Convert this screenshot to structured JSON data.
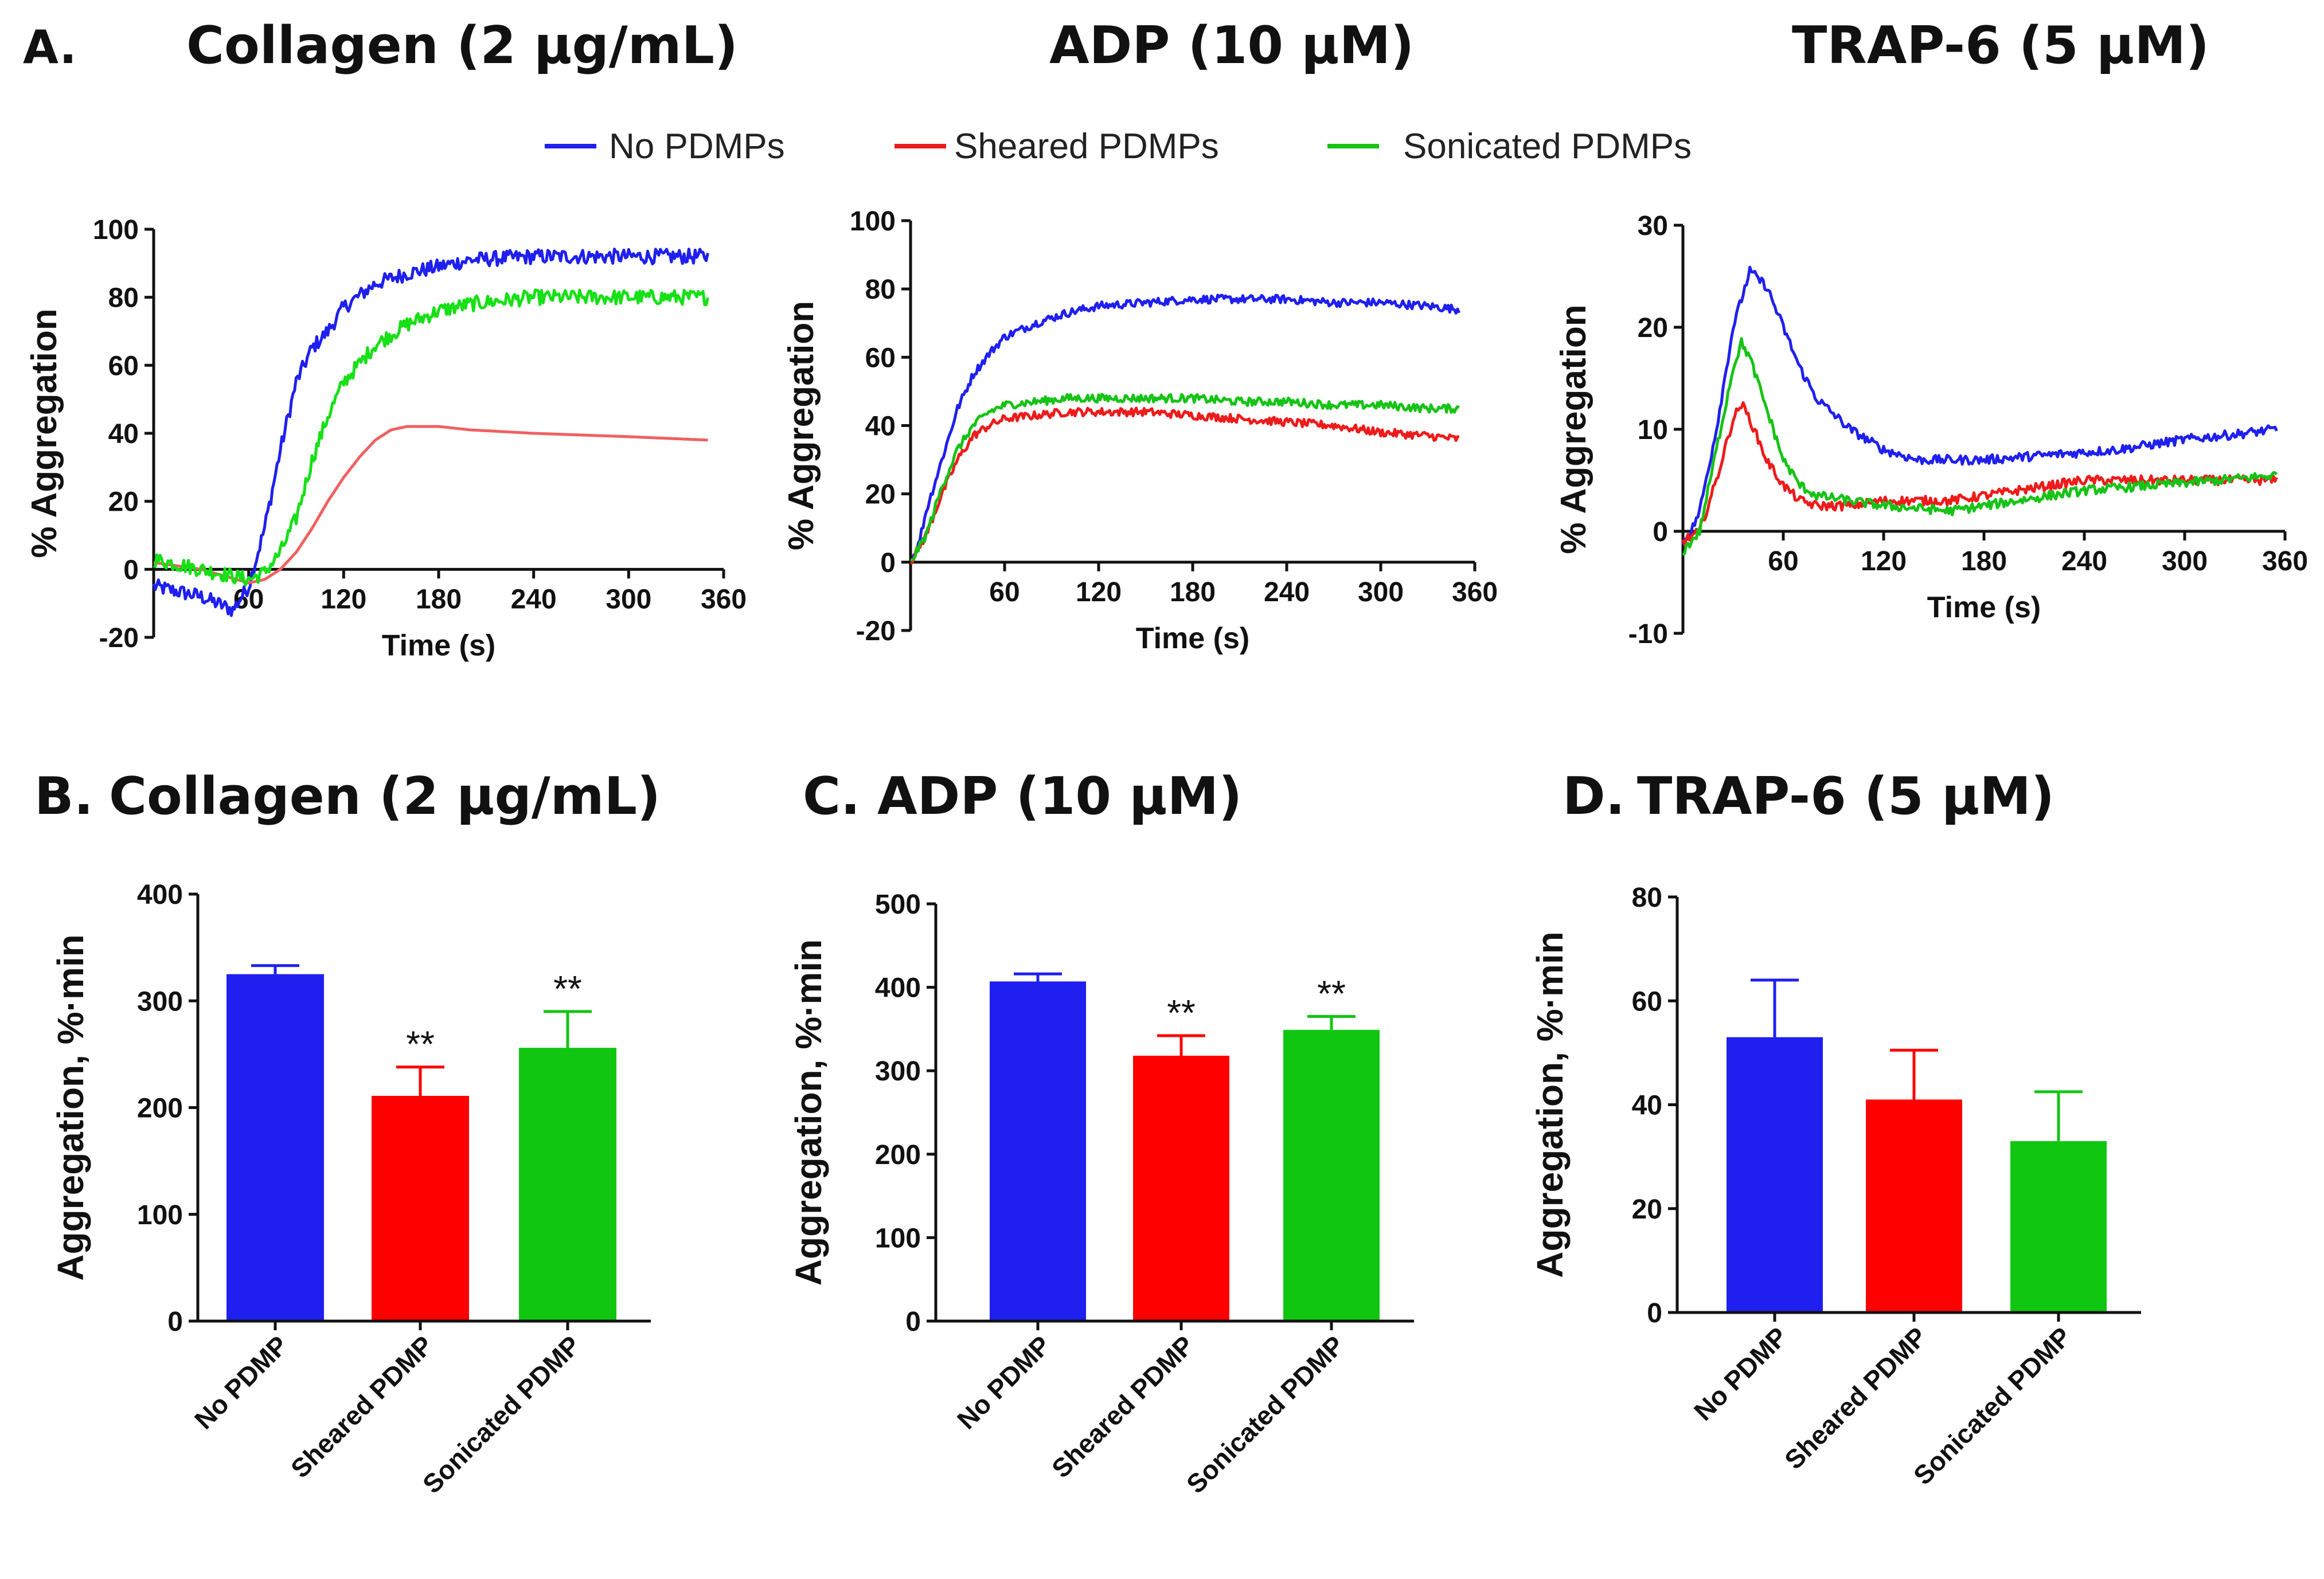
{
  "figure": {
    "panel_a_label": "A.",
    "legend": [
      {
        "label": "No PDMPs",
        "color": "#1f1ff0"
      },
      {
        "label": "Sheared PDMPs",
        "color": "#ee1b1b"
      },
      {
        "label": "Sonicated PDMPs",
        "color": "#16c316"
      }
    ]
  },
  "chart_data": [
    {
      "id": "a1",
      "type": "line",
      "title": "Collagen (2 µg/mL)",
      "xlabel": "Time (s)",
      "ylabel": "% Aggregation",
      "xlim": [
        0,
        360
      ],
      "ylim": [
        -20,
        100
      ],
      "xticks": [
        60,
        120,
        180,
        240,
        300,
        360
      ],
      "yticks": [
        -20,
        0,
        20,
        40,
        60,
        80,
        100
      ],
      "noise": 2.2,
      "series": [
        {
          "name": "No PDMPs",
          "color": "#1f1ff0",
          "noisy": true,
          "x": [
            0,
            10,
            30,
            40,
            50,
            60,
            70,
            80,
            90,
            100,
            110,
            120,
            140,
            160,
            180,
            200,
            240,
            280,
            320,
            350
          ],
          "y": [
            -5,
            -6,
            -8,
            -10,
            -12,
            -5,
            12,
            35,
            55,
            65,
            70,
            77,
            84,
            87,
            89,
            91,
            92,
            92,
            92,
            92
          ]
        },
        {
          "name": "Sheared PDMPs",
          "color": "#f06060",
          "noisy": false,
          "x": [
            0,
            30,
            60,
            70,
            80,
            90,
            100,
            110,
            120,
            130,
            140,
            150,
            160,
            180,
            200,
            240,
            300,
            350
          ],
          "y": [
            2,
            0,
            -4,
            -3,
            0,
            5,
            12,
            20,
            27,
            33,
            38,
            41,
            42,
            42,
            41,
            40,
            39,
            38
          ]
        },
        {
          "name": "Sonicated PDMPs",
          "color": "#16e016",
          "noisy": true,
          "x": [
            0,
            30,
            60,
            70,
            80,
            90,
            100,
            110,
            120,
            140,
            160,
            180,
            200,
            220,
            240,
            280,
            320,
            350
          ],
          "y": [
            3,
            0,
            -3,
            -1,
            5,
            15,
            32,
            45,
            55,
            66,
            72,
            76,
            78,
            79,
            80,
            80,
            80,
            80
          ]
        }
      ]
    },
    {
      "id": "a2",
      "type": "line",
      "title": "ADP (10 µM)",
      "xlabel": "Time (s)",
      "ylabel": "% Aggregation",
      "xlim": [
        0,
        360
      ],
      "ylim": [
        -20,
        100
      ],
      "xticks": [
        60,
        120,
        180,
        240,
        300,
        360
      ],
      "yticks": [
        -20,
        0,
        20,
        40,
        60,
        80,
        100
      ],
      "noise": 1.2,
      "series": [
        {
          "name": "No PDMPs",
          "color": "#1f1ff0",
          "noisy": true,
          "x": [
            0,
            5,
            10,
            20,
            30,
            40,
            50,
            60,
            80,
            100,
            120,
            150,
            180,
            210,
            240,
            270,
            300,
            330,
            350
          ],
          "y": [
            0,
            5,
            15,
            30,
            45,
            55,
            61,
            66,
            70,
            73,
            75,
            76,
            77,
            77,
            77,
            76,
            76,
            75,
            74
          ]
        },
        {
          "name": "Sheared PDMPs",
          "color": "#ee1b1b",
          "noisy": true,
          "x": [
            0,
            10,
            20,
            30,
            40,
            50,
            60,
            80,
            100,
            120,
            150,
            180,
            210,
            240,
            270,
            300,
            330,
            350
          ],
          "y": [
            0,
            8,
            20,
            30,
            37,
            40,
            42,
            43,
            44,
            44,
            44,
            43,
            42,
            41,
            40,
            38,
            37,
            36
          ]
        },
        {
          "name": "Sonicated PDMPs",
          "color": "#16c316",
          "noisy": true,
          "x": [
            0,
            10,
            20,
            30,
            40,
            50,
            60,
            80,
            100,
            120,
            150,
            180,
            210,
            240,
            270,
            300,
            330,
            350
          ],
          "y": [
            0,
            8,
            22,
            33,
            40,
            44,
            46,
            47,
            48,
            48,
            48,
            48,
            47,
            47,
            46,
            46,
            45,
            45
          ]
        }
      ]
    },
    {
      "id": "a3",
      "type": "line",
      "title": "TRAP-6 (5 µM)",
      "xlabel": "Time (s)",
      "ylabel": "% Aggregation",
      "xlim": [
        0,
        360
      ],
      "ylim": [
        -10,
        30
      ],
      "xticks": [
        60,
        120,
        180,
        240,
        300,
        360
      ],
      "yticks": [
        -10,
        0,
        10,
        20,
        30
      ],
      "noise": 0.45,
      "series": [
        {
          "name": "No PDMPs",
          "color": "#1f1ff0",
          "noisy": true,
          "x": [
            0,
            5,
            10,
            20,
            30,
            40,
            50,
            60,
            70,
            80,
            100,
            120,
            140,
            160,
            180,
            220,
            260,
            300,
            330,
            355
          ],
          "y": [
            -1,
            0,
            2,
            10,
            20,
            25.5,
            24,
            20,
            16,
            13,
            10,
            8,
            7,
            7,
            7,
            7.5,
            8,
            9,
            9.5,
            10
          ]
        },
        {
          "name": "Sheared PDMPs",
          "color": "#ee1b1b",
          "noisy": true,
          "x": [
            0,
            10,
            20,
            30,
            35,
            40,
            50,
            60,
            70,
            80,
            100,
            120,
            160,
            200,
            240,
            280,
            320,
            355
          ],
          "y": [
            -1,
            0,
            5,
            11,
            12.5,
            11,
            7,
            4.5,
            3,
            2.5,
            2.5,
            3,
            3,
            4,
            5,
            5,
            5,
            5
          ]
        },
        {
          "name": "Sonicated PDMPs",
          "color": "#16c316",
          "noisy": true,
          "x": [
            0,
            10,
            20,
            30,
            35,
            40,
            50,
            60,
            70,
            80,
            100,
            120,
            160,
            200,
            240,
            280,
            320,
            355
          ],
          "y": [
            -2,
            0,
            8,
            16,
            18.5,
            17,
            12,
            7,
            4.5,
            3.5,
            3,
            2.5,
            2,
            3,
            4,
            4.5,
            5,
            5.5
          ]
        }
      ]
    },
    {
      "id": "b",
      "type": "bar",
      "panel_label": "B.",
      "title": "Collagen (2 µg/mL)",
      "ylabel": "Aggregation, %·min",
      "ylim": [
        0,
        400
      ],
      "yticks": [
        0,
        100,
        200,
        300,
        400
      ],
      "categories": [
        "No PDMP",
        "Sheared PDMP",
        "Sonicated PDMP"
      ],
      "colors": [
        "#1f1ff0",
        "#ff0000",
        "#11c611"
      ],
      "values": [
        325,
        211,
        256
      ],
      "errors": [
        8,
        27,
        34
      ],
      "annotations": [
        "",
        "**",
        "**"
      ]
    },
    {
      "id": "c",
      "type": "bar",
      "panel_label": "C.",
      "title": "ADP (10 µM)",
      "ylabel": "Aggregation, %·min",
      "ylim": [
        0,
        500
      ],
      "yticks": [
        0,
        100,
        200,
        300,
        400,
        500
      ],
      "categories": [
        "No PDMP",
        "Sheared PDMP",
        "Sonicated PDMP"
      ],
      "colors": [
        "#1f1ff0",
        "#ff0000",
        "#11c611"
      ],
      "values": [
        407,
        318,
        349
      ],
      "errors": [
        9,
        24,
        16
      ],
      "annotations": [
        "",
        "**",
        "**"
      ]
    },
    {
      "id": "d",
      "type": "bar",
      "panel_label": "D.",
      "title": "TRAP-6 (5 µM)",
      "ylabel": "Aggregation, %·min",
      "ylim": [
        0,
        80
      ],
      "yticks": [
        0,
        20,
        40,
        60,
        80
      ],
      "categories": [
        "No PDMP",
        "Sheared PDMP",
        "Sonicated PDMP"
      ],
      "colors": [
        "#1f1ff0",
        "#ff0000",
        "#11c611"
      ],
      "values": [
        53,
        41,
        33
      ],
      "errors": [
        11,
        9.5,
        9.5
      ],
      "annotations": [
        "",
        "",
        ""
      ]
    }
  ]
}
